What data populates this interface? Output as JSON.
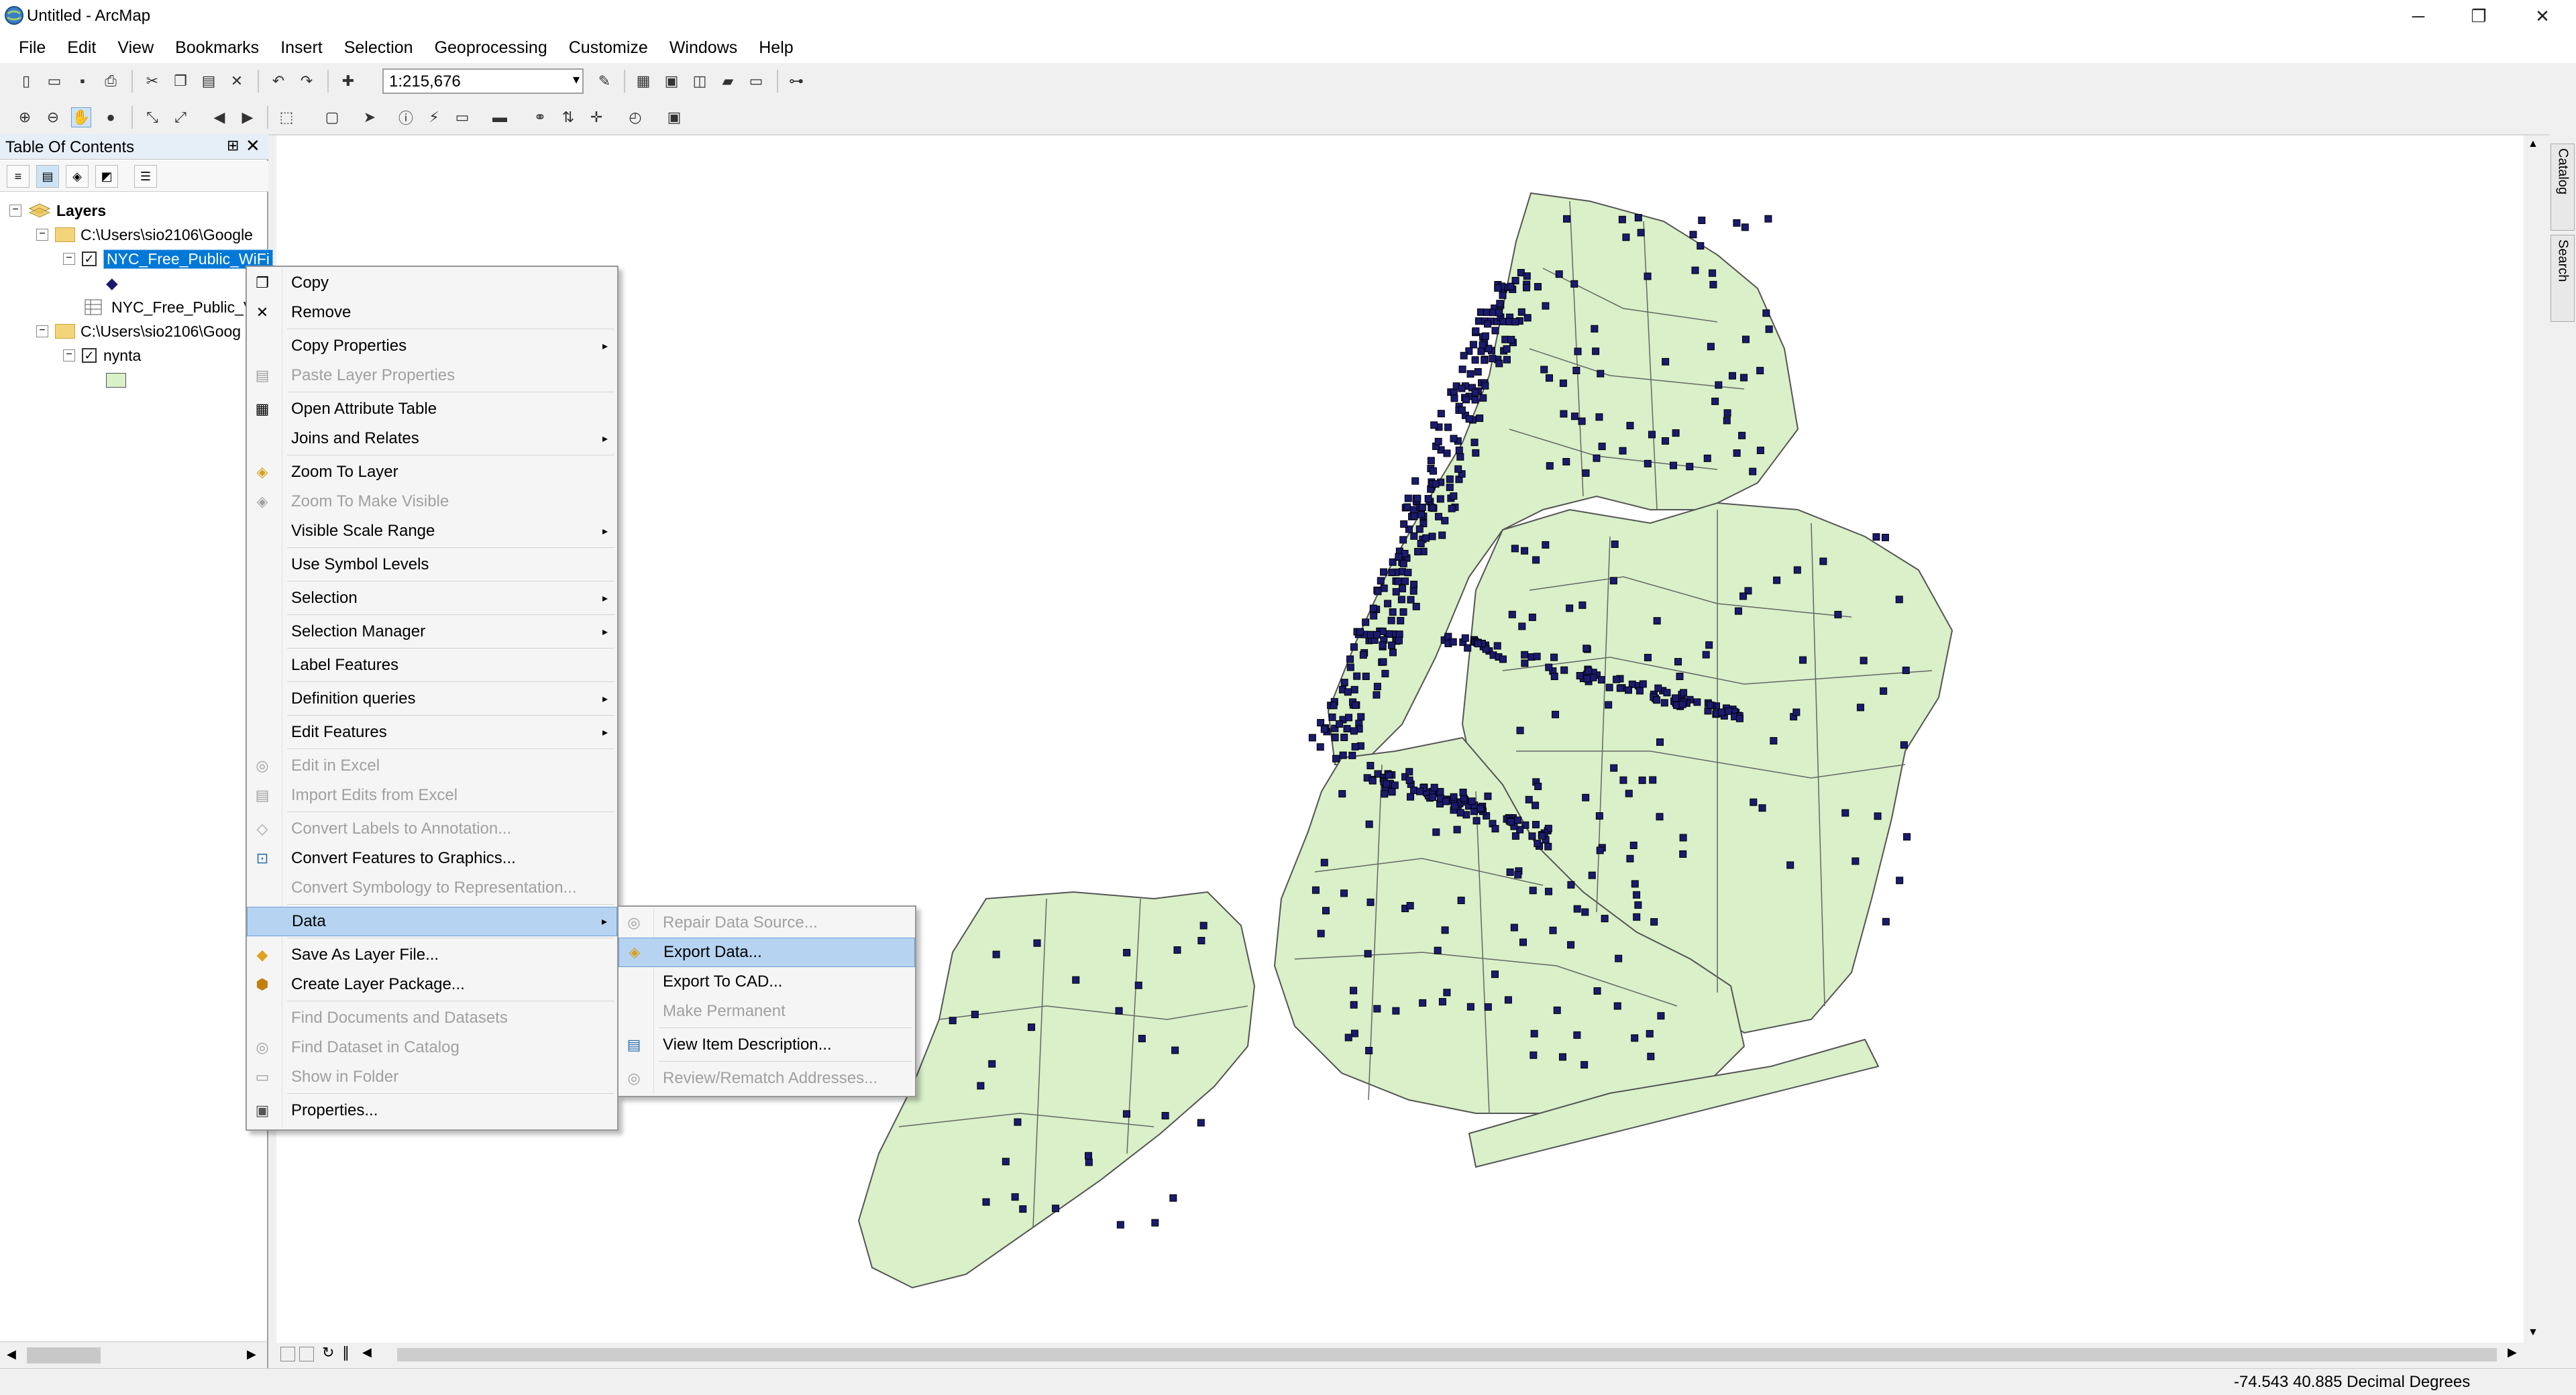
{
  "window": {
    "title": "Untitled - ArcMap",
    "minimize_glyph": "─",
    "maximize_glyph": "❐",
    "close_glyph": "✕"
  },
  "menubar": [
    "File",
    "Edit",
    "View",
    "Bookmarks",
    "Insert",
    "Selection",
    "Geoprocessing",
    "Customize",
    "Windows",
    "Help"
  ],
  "toolbar": {
    "scale": "1:215,676",
    "scale_dropdown_glyph": "▾"
  },
  "toc": {
    "title": "Table Of Contents",
    "pin_glyph": "⊞",
    "close_glyph": "✕",
    "layers_label": "Layers",
    "group1_path": "C:\\Users\\sio2106\\Google",
    "group1_layer": "NYC_Free_Public_WiFi",
    "group1_table": "NYC_Free_Public_V",
    "group2_path": "C:\\Users\\sio2106\\Goog",
    "group2_layer": "nynta",
    "collapse_glyph": "−",
    "check_glyph": "✓",
    "point_symbol_glyph": "◆"
  },
  "context_menu": {
    "copy": "Copy",
    "remove": "Remove",
    "copy_properties": "Copy Properties",
    "paste_layer_properties": "Paste Layer Properties",
    "open_attribute_table": "Open Attribute Table",
    "joins_and_relates": "Joins and Relates",
    "zoom_to_layer": "Zoom To Layer",
    "zoom_to_make_visible": "Zoom To Make Visible",
    "visible_scale_range": "Visible Scale Range",
    "use_symbol_levels": "Use Symbol Levels",
    "selection": "Selection",
    "selection_manager": "Selection Manager",
    "label_features": "Label Features",
    "definition_queries": "Definition queries",
    "edit_features": "Edit Features",
    "edit_in_excel": "Edit in Excel",
    "import_edits_from_excel": "Import Edits from Excel",
    "convert_labels": "Convert Labels to Annotation...",
    "convert_features": "Convert Features to Graphics...",
    "convert_symbology": "Convert Symbology to Representation...",
    "data": "Data",
    "save_as_layer_file": "Save As Layer File...",
    "create_layer_package": "Create Layer Package...",
    "find_documents": "Find Documents and Datasets",
    "find_dataset": "Find Dataset in Catalog",
    "show_in_folder": "Show in Folder",
    "properties": "Properties...",
    "submenu_arrow": "▸",
    "icons": {
      "copy": "copy-icon",
      "remove": "remove-x-icon",
      "table": "table-icon",
      "zoom": "zoom-to-layer-icon",
      "layer_file": "layer-file-icon",
      "package": "package-icon",
      "properties": "properties-icon"
    }
  },
  "data_submenu": {
    "repair_data_source": "Repair Data Source...",
    "export_data": "Export Data...",
    "export_to_cad": "Export To CAD...",
    "make_permanent": "Make Permanent",
    "view_item_description": "View Item Description...",
    "review_rematch": "Review/Rematch Addresses..."
  },
  "map_tabs": {
    "catalog": "Catalog",
    "search": "Search"
  },
  "statusbar": {
    "coordinates": "-74.543  40.885 Decimal Degrees"
  },
  "colors": {
    "land_fill": "#d9f0c8",
    "boundary": "#555555",
    "wifi_point": "#1a1a6e",
    "selection_bg": "#0078d7",
    "menu_highlight": "#b6d4f2"
  }
}
